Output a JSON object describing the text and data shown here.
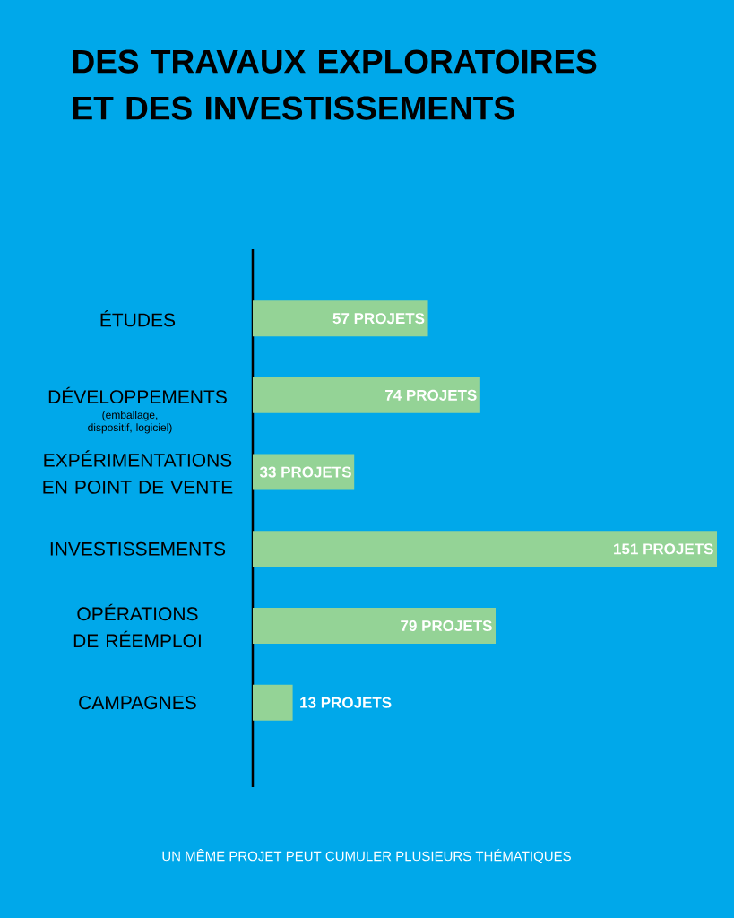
{
  "chart_data": {
    "type": "bar",
    "orientation": "horizontal",
    "title": "DES TRAVAUX EXPLORATOIRES ET DES INVESTISSEMENTS",
    "categories": [
      "ÉTUDES",
      "DÉVELOPPEMENTS",
      "EXPÉRIMENTATIONS EN POINT DE VENTE",
      "INVESTISSEMENTS",
      "OPÉRATIONS DE RÉEMPLOI",
      "CAMPAGNES"
    ],
    "values": [
      57,
      74,
      33,
      151,
      79,
      13
    ],
    "value_labels": [
      "57 PROJETS",
      "74 PROJETS",
      "33 PROJETS",
      "151 PROJETS",
      "79 PROJETS",
      "13 PROJETS"
    ],
    "color": "#94d396",
    "annotations": [
      "(emballage, dispositif, logiciel)",
      "UN MÊME PROJET PEUT CUMULER PLUSIEURS THÉMATIQUES"
    ]
  }
}
